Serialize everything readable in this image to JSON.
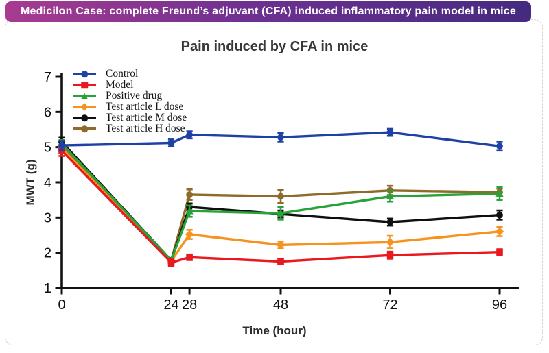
{
  "banner": {
    "text": "Medicilon Case: complete Freund’s adjuvant (CFA) induced inflammatory pain model in mice",
    "gradient": [
      "#a93b90",
      "#6f3191",
      "#452a80"
    ],
    "text_color": "#ffffff"
  },
  "card": {
    "border_color": "#d9cdd5"
  },
  "chart_data": {
    "type": "line",
    "title": "Pain induced by CFA in mice",
    "xlabel": "Time (hour)",
    "ylabel": "MWT (g)",
    "x": [
      0,
      24,
      28,
      48,
      72,
      96
    ],
    "xticks": [
      0,
      24,
      28,
      48,
      72,
      96
    ],
    "yticks": [
      1,
      2,
      3,
      4,
      5,
      6,
      7
    ],
    "xlim": [
      0,
      100
    ],
    "ylim": [
      1,
      7
    ],
    "grid": false,
    "legend_position": "top-left-inside",
    "axis_color": "#111111",
    "series": [
      {
        "name": "Control",
        "color": "#1f41a5",
        "marker": "circle",
        "values": [
          5.05,
          5.12,
          5.35,
          5.28,
          5.42,
          5.03
        ],
        "errors": [
          0.13,
          0.1,
          0.1,
          0.12,
          0.1,
          0.13
        ]
      },
      {
        "name": "Model",
        "color": "#e8191f",
        "marker": "square",
        "values": [
          4.9,
          1.72,
          1.87,
          1.75,
          1.93,
          2.02
        ],
        "errors": [
          0.15,
          0.1,
          0.08,
          0.08,
          0.1,
          0.08
        ]
      },
      {
        "name": "Positive drug",
        "color": "#28a339",
        "marker": "triangle",
        "values": [
          5.1,
          1.78,
          3.18,
          3.12,
          3.6,
          3.68
        ],
        "errors": [
          0.1,
          0.05,
          0.16,
          0.18,
          0.15,
          0.18
        ]
      },
      {
        "name": "Test article L dose",
        "color": "#f6921e",
        "marker": "diamond",
        "values": [
          4.97,
          1.76,
          2.52,
          2.22,
          2.3,
          2.6
        ],
        "errors": [
          0.1,
          0.05,
          0.13,
          0.1,
          0.18,
          0.13
        ]
      },
      {
        "name": "Test article M dose",
        "color": "#0f0f0f",
        "marker": "circle",
        "values": [
          5.15,
          1.78,
          3.3,
          3.1,
          2.87,
          3.07
        ],
        "errors": [
          0.12,
          0.05,
          0.1,
          0.1,
          0.1,
          0.13
        ]
      },
      {
        "name": "Test article H dose",
        "color": "#8e6b2a",
        "marker": "circle",
        "values": [
          5.02,
          1.78,
          3.65,
          3.6,
          3.77,
          3.72
        ],
        "errors": [
          0.12,
          0.05,
          0.15,
          0.18,
          0.13,
          0.1
        ]
      }
    ]
  }
}
